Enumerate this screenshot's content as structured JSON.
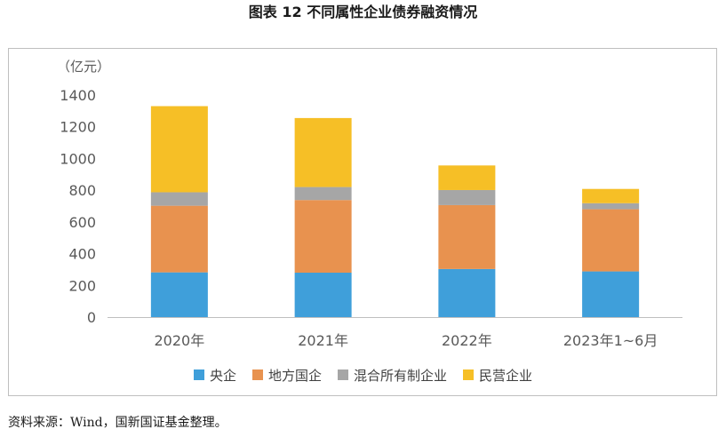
{
  "figure": {
    "title": "图表 12  不同属性企业债券融资情况",
    "source": "资料来源：Wind，国新国证基金整理。"
  },
  "chart_data": {
    "type": "bar",
    "stacked": true,
    "title": "",
    "ylabel": "（亿元）",
    "xlabel": "",
    "ylim": [
      0,
      1400
    ],
    "yticks": [
      0,
      200,
      400,
      600,
      800,
      1000,
      1200,
      1400
    ],
    "grid": false,
    "legend_position": "bottom",
    "categories": [
      "2020年",
      "2021年",
      "2022年",
      "2023年1~6月"
    ],
    "series": [
      {
        "name": "央企",
        "color": "#3f9fda",
        "values": [
          282,
          280,
          303,
          288
        ]
      },
      {
        "name": "地方国企",
        "color": "#e8924f",
        "values": [
          420,
          458,
          403,
          392
        ]
      },
      {
        "name": "混合所有制企业",
        "color": "#a6a6a6",
        "values": [
          85,
          82,
          95,
          38
        ]
      },
      {
        "name": "民营企业",
        "color": "#f6bf26",
        "values": [
          543,
          435,
          155,
          90
        ]
      }
    ]
  }
}
